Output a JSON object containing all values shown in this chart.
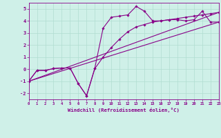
{
  "xlabel": "Windchill (Refroidissement éolien,°C)",
  "xlim": [
    0,
    23
  ],
  "ylim": [
    -2.5,
    5.5
  ],
  "yticks": [
    -2,
    -1,
    0,
    1,
    2,
    3,
    4,
    5
  ],
  "xticks": [
    0,
    1,
    2,
    3,
    4,
    5,
    6,
    7,
    8,
    9,
    10,
    11,
    12,
    13,
    14,
    15,
    16,
    17,
    18,
    19,
    20,
    21,
    22,
    23
  ],
  "bg_color": "#cff0e8",
  "line_color": "#880088",
  "grid_color": "#b0ddd0",
  "lines": [
    {
      "x": [
        0,
        1,
        2,
        3,
        4,
        5,
        6,
        7,
        8,
        9,
        10,
        11,
        12,
        13,
        14,
        15,
        16,
        17,
        18,
        19,
        20,
        21,
        22,
        23
      ],
      "y": [
        -1.0,
        -0.1,
        -0.1,
        0.05,
        0.1,
        0.1,
        -1.2,
        -2.2,
        0.1,
        3.4,
        4.3,
        4.4,
        4.5,
        5.2,
        4.8,
        4.0,
        4.0,
        4.1,
        4.1,
        4.0,
        4.1,
        4.8,
        3.9,
        3.9
      ],
      "marker": true
    },
    {
      "x": [
        0,
        1,
        2,
        3,
        4,
        5,
        6,
        7,
        8,
        9,
        10,
        11,
        12,
        13,
        14,
        15,
        16,
        17,
        18,
        19,
        20,
        21,
        22,
        23
      ],
      "y": [
        -1.0,
        -0.1,
        -0.1,
        0.05,
        0.1,
        0.1,
        -1.2,
        -2.2,
        0.05,
        1.0,
        1.8,
        2.5,
        3.1,
        3.5,
        3.7,
        3.9,
        4.0,
        4.1,
        4.2,
        4.3,
        4.4,
        4.5,
        4.6,
        4.7
      ],
      "marker": true
    },
    {
      "x": [
        0,
        23
      ],
      "y": [
        -1.0,
        3.9
      ],
      "marker": false
    },
    {
      "x": [
        0,
        23
      ],
      "y": [
        -1.0,
        4.7
      ],
      "marker": false
    }
  ]
}
